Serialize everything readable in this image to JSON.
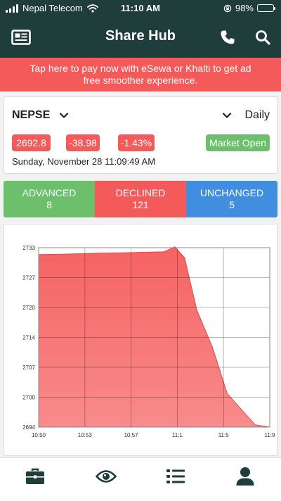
{
  "status_bar": {
    "carrier": "Nepal Telecom",
    "time": "11:10 AM",
    "battery": "98%",
    "battery_level": 0.98
  },
  "header": {
    "title": "Share Hub",
    "icons": [
      "newspaper-icon",
      "phone-icon",
      "search-icon"
    ]
  },
  "promo": {
    "text": "Tap here to pay now with eSewa or Khalti to get ad free smoother experience."
  },
  "index": {
    "name": "NEPSE",
    "period": "Daily",
    "value": "2692.8",
    "change": "-38.98",
    "percent": "-1.43%",
    "market_status": "Market Open",
    "datetime": "Sunday, November 28 11:09:49 AM"
  },
  "breadth": {
    "advanced_label": "ADVANCED",
    "advanced": "8",
    "declined_label": "DECLINED",
    "declined": "121",
    "unchanged_label": "UNCHANGED",
    "unchanged": "5"
  },
  "colors": {
    "header": "#1f3d3a",
    "red": "#f55a5a",
    "green": "#6cc06c",
    "blue": "#3f8ee0"
  },
  "chart_data": {
    "type": "area",
    "x_tick_labels": [
      "10:50",
      "10:53",
      "10:57",
      "11:1",
      "11:5",
      "11:9"
    ],
    "y_tick_labels": [
      "2733",
      "2727",
      "2720",
      "2714",
      "2707",
      "2700",
      "2694"
    ],
    "xlim": [
      0,
      19
    ],
    "ylim": [
      2694,
      2733
    ],
    "x": [
      0,
      2,
      5,
      7,
      8.5,
      10.3,
      11.2,
      12,
      13,
      14.3,
      15.5,
      17.8,
      19
    ],
    "y": [
      2731.5,
      2731.6,
      2731.8,
      2731.9,
      2732.0,
      2732.1,
      2733.2,
      2730.8,
      2719.5,
      2711.3,
      2701.3,
      2694.5,
      2694.0
    ],
    "grid": true,
    "legend": "none",
    "fill_color": "#f55a5a"
  },
  "tab_bar": {
    "icons": [
      "briefcase-icon",
      "eye-icon",
      "list-icon",
      "user-icon"
    ]
  }
}
